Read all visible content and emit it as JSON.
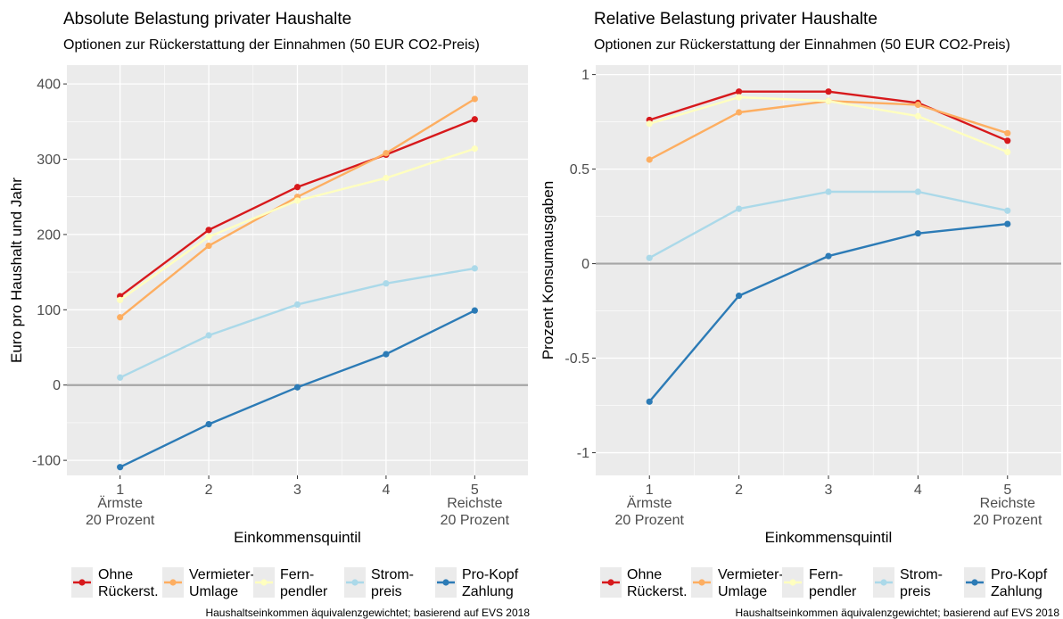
{
  "colors": {
    "panel_bg": "#ebebeb",
    "grid": "#ffffff",
    "zero_line": "#a6a6a6"
  },
  "legend_items": [
    {
      "label": [
        "Ohne",
        "Rückerst."
      ],
      "color": "#d7191c"
    },
    {
      "label": [
        "Vermieter-",
        "Umlage"
      ],
      "color": "#fdae61"
    },
    {
      "label": [
        "Fern-",
        "pendler"
      ],
      "color": "#ffffbf"
    },
    {
      "label": [
        "Strom-",
        "preis"
      ],
      "color": "#abd9e9"
    },
    {
      "label": [
        "Pro-Kopf",
        "Zahlung"
      ],
      "color": "#2c7bb6"
    }
  ],
  "chart_data": [
    {
      "type": "line",
      "title": "Absolute Belastung privater Haushalte",
      "subtitle": "Optionen zur Rückerstattung der Einnahmen (50 EUR CO2-Preis)",
      "xlabel": "Einkommensquintil",
      "ylabel": "Euro pro Haushalt und Jahr",
      "x": [
        1,
        2,
        3,
        4,
        5
      ],
      "x_tick_labels": [
        "1",
        "2",
        "3",
        "4",
        "5"
      ],
      "x_extra_labels": {
        "left": [
          "Ärmste",
          "20 Prozent"
        ],
        "right": [
          "Reichste",
          "20 Prozent"
        ]
      },
      "xlim": [
        0.4,
        5.6
      ],
      "ylim": [
        -120,
        425
      ],
      "y_ticks": [
        -100,
        0,
        100,
        200,
        300,
        400
      ],
      "y_tick_labels": [
        "-100",
        "0",
        "100",
        "200",
        "300",
        "400"
      ],
      "hline": 0,
      "grid": true,
      "legend": "bottom",
      "caption": "Haushaltseinkommen äquivalenzgewichtet; basierend auf EVS 2018",
      "series": [
        {
          "name": "Ohne Rückerst.",
          "color": "#d7191c",
          "values": [
            118,
            206,
            263,
            306,
            353
          ]
        },
        {
          "name": "Vermieter-Umlage",
          "color": "#fdae61",
          "values": [
            90,
            185,
            250,
            308,
            380
          ]
        },
        {
          "name": "Fernpendler",
          "color": "#ffffbf",
          "values": [
            113,
            197,
            245,
            275,
            314
          ]
        },
        {
          "name": "Strompreis",
          "color": "#abd9e9",
          "values": [
            10,
            66,
            107,
            135,
            155
          ]
        },
        {
          "name": "Pro-Kopf Zahlung",
          "color": "#2c7bb6",
          "values": [
            -109,
            -52,
            -3,
            41,
            99
          ]
        }
      ]
    },
    {
      "type": "line",
      "title": "Relative Belastung privater Haushalte",
      "subtitle": "Optionen zur Rückerstattung der Einnahmen (50 EUR CO2-Preis)",
      "xlabel": "Einkommensquintil",
      "ylabel": "Prozent Konsumausgaben",
      "x": [
        1,
        2,
        3,
        4,
        5
      ],
      "x_tick_labels": [
        "1",
        "2",
        "3",
        "4",
        "5"
      ],
      "x_extra_labels": {
        "left": [
          "Ärmste",
          "20 Prozent"
        ],
        "right": [
          "Reichste",
          "20 Prozent"
        ]
      },
      "xlim": [
        0.4,
        5.6
      ],
      "ylim": [
        -1.12,
        1.05
      ],
      "y_ticks": [
        -1,
        -0.5,
        0,
        0.5,
        1
      ],
      "y_tick_labels": [
        "-1",
        "-0.5",
        "0",
        "0.5",
        "1"
      ],
      "hline": 0,
      "grid": true,
      "legend": "bottom",
      "caption": "Haushaltseinkommen äquivalenzgewichtet; basierend auf EVS 2018",
      "series": [
        {
          "name": "Ohne Rückerst.",
          "color": "#d7191c",
          "values": [
            0.76,
            0.91,
            0.91,
            0.85,
            0.65
          ]
        },
        {
          "name": "Vermieter-Umlage",
          "color": "#fdae61",
          "values": [
            0.55,
            0.8,
            0.86,
            0.84,
            0.69
          ]
        },
        {
          "name": "Fernpendler",
          "color": "#ffffbf",
          "values": [
            0.74,
            0.88,
            0.86,
            0.78,
            0.59
          ]
        },
        {
          "name": "Strompreis",
          "color": "#abd9e9",
          "values": [
            0.03,
            0.29,
            0.38,
            0.38,
            0.28
          ]
        },
        {
          "name": "Pro-Kopf Zahlung",
          "color": "#2c7bb6",
          "values": [
            -0.73,
            -0.17,
            0.04,
            0.16,
            0.21
          ]
        }
      ]
    }
  ]
}
